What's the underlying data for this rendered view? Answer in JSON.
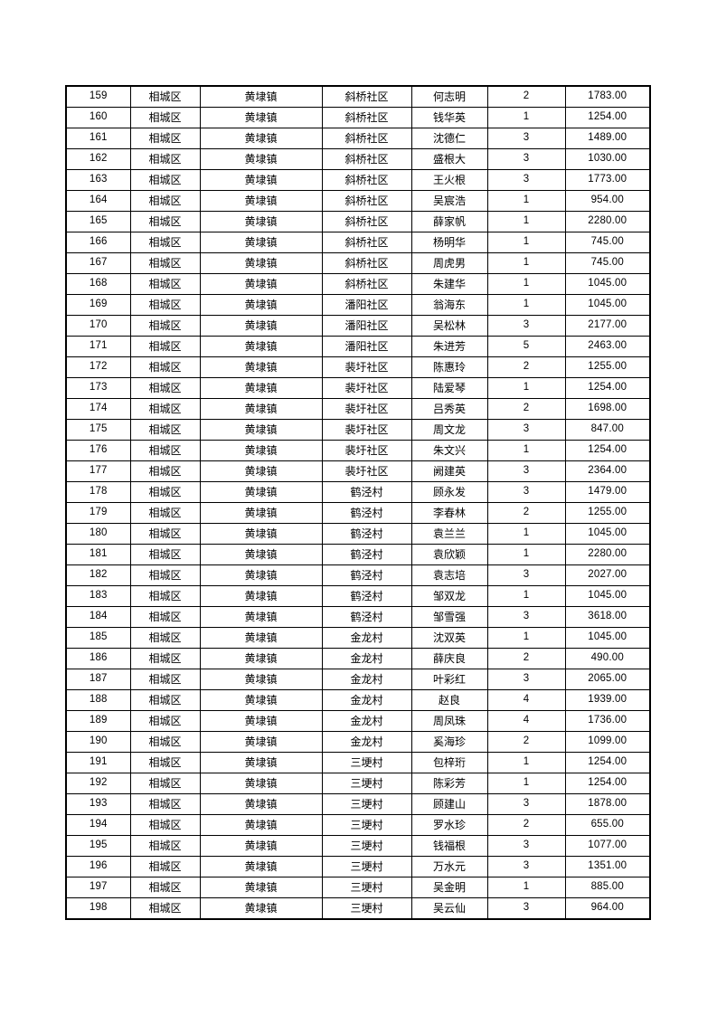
{
  "page": {
    "background": "#ffffff",
    "border_color": "#000000",
    "text_color": "#000000"
  },
  "table": {
    "rows": [
      [
        "159",
        "相城区",
        "黄埭镇",
        "斜桥社区",
        "何志明",
        "2",
        "1783.00"
      ],
      [
        "160",
        "相城区",
        "黄埭镇",
        "斜桥社区",
        "钱华英",
        "1",
        "1254.00"
      ],
      [
        "161",
        "相城区",
        "黄埭镇",
        "斜桥社区",
        "沈德仁",
        "3",
        "1489.00"
      ],
      [
        "162",
        "相城区",
        "黄埭镇",
        "斜桥社区",
        "盛根大",
        "3",
        "1030.00"
      ],
      [
        "163",
        "相城区",
        "黄埭镇",
        "斜桥社区",
        "王火根",
        "3",
        "1773.00"
      ],
      [
        "164",
        "相城区",
        "黄埭镇",
        "斜桥社区",
        "吴宸浩",
        "1",
        "954.00"
      ],
      [
        "165",
        "相城区",
        "黄埭镇",
        "斜桥社区",
        "薛家帆",
        "1",
        "2280.00"
      ],
      [
        "166",
        "相城区",
        "黄埭镇",
        "斜桥社区",
        "杨明华",
        "1",
        "745.00"
      ],
      [
        "167",
        "相城区",
        "黄埭镇",
        "斜桥社区",
        "周虎男",
        "1",
        "745.00"
      ],
      [
        "168",
        "相城区",
        "黄埭镇",
        "斜桥社区",
        "朱建华",
        "1",
        "1045.00"
      ],
      [
        "169",
        "相城区",
        "黄埭镇",
        "潘阳社区",
        "翁海东",
        "1",
        "1045.00"
      ],
      [
        "170",
        "相城区",
        "黄埭镇",
        "潘阳社区",
        "吴松林",
        "3",
        "2177.00"
      ],
      [
        "171",
        "相城区",
        "黄埭镇",
        "潘阳社区",
        "朱进芳",
        "5",
        "2463.00"
      ],
      [
        "172",
        "相城区",
        "黄埭镇",
        "裴圩社区",
        "陈惠玲",
        "2",
        "1255.00"
      ],
      [
        "173",
        "相城区",
        "黄埭镇",
        "裴圩社区",
        "陆爱琴",
        "1",
        "1254.00"
      ],
      [
        "174",
        "相城区",
        "黄埭镇",
        "裴圩社区",
        "吕秀英",
        "2",
        "1698.00"
      ],
      [
        "175",
        "相城区",
        "黄埭镇",
        "裴圩社区",
        "周文龙",
        "3",
        "847.00"
      ],
      [
        "176",
        "相城区",
        "黄埭镇",
        "裴圩社区",
        "朱文兴",
        "1",
        "1254.00"
      ],
      [
        "177",
        "相城区",
        "黄埭镇",
        "裴圩社区",
        "阙建英",
        "3",
        "2364.00"
      ],
      [
        "178",
        "相城区",
        "黄埭镇",
        "鹤泾村",
        "顾永发",
        "3",
        "1479.00"
      ],
      [
        "179",
        "相城区",
        "黄埭镇",
        "鹤泾村",
        "李春林",
        "2",
        "1255.00"
      ],
      [
        "180",
        "相城区",
        "黄埭镇",
        "鹤泾村",
        "袁兰兰",
        "1",
        "1045.00"
      ],
      [
        "181",
        "相城区",
        "黄埭镇",
        "鹤泾村",
        "袁欣颖",
        "1",
        "2280.00"
      ],
      [
        "182",
        "相城区",
        "黄埭镇",
        "鹤泾村",
        "袁志培",
        "3",
        "2027.00"
      ],
      [
        "183",
        "相城区",
        "黄埭镇",
        "鹤泾村",
        "邹双龙",
        "1",
        "1045.00"
      ],
      [
        "184",
        "相城区",
        "黄埭镇",
        "鹤泾村",
        "邹雪强",
        "3",
        "3618.00"
      ],
      [
        "185",
        "相城区",
        "黄埭镇",
        "金龙村",
        "沈双英",
        "1",
        "1045.00"
      ],
      [
        "186",
        "相城区",
        "黄埭镇",
        "金龙村",
        "薛庆良",
        "2",
        "490.00"
      ],
      [
        "187",
        "相城区",
        "黄埭镇",
        "金龙村",
        "叶彩红",
        "3",
        "2065.00"
      ],
      [
        "188",
        "相城区",
        "黄埭镇",
        "金龙村",
        "赵良",
        "4",
        "1939.00"
      ],
      [
        "189",
        "相城区",
        "黄埭镇",
        "金龙村",
        "周凤珠",
        "4",
        "1736.00"
      ],
      [
        "190",
        "相城区",
        "黄埭镇",
        "金龙村",
        "奚海珍",
        "2",
        "1099.00"
      ],
      [
        "191",
        "相城区",
        "黄埭镇",
        "三埂村",
        "包梓珩",
        "1",
        "1254.00"
      ],
      [
        "192",
        "相城区",
        "黄埭镇",
        "三埂村",
        "陈彩芳",
        "1",
        "1254.00"
      ],
      [
        "193",
        "相城区",
        "黄埭镇",
        "三埂村",
        "顾建山",
        "3",
        "1878.00"
      ],
      [
        "194",
        "相城区",
        "黄埭镇",
        "三埂村",
        "罗水珍",
        "2",
        "655.00"
      ],
      [
        "195",
        "相城区",
        "黄埭镇",
        "三埂村",
        "钱福根",
        "3",
        "1077.00"
      ],
      [
        "196",
        "相城区",
        "黄埭镇",
        "三埂村",
        "万水元",
        "3",
        "1351.00"
      ],
      [
        "197",
        "相城区",
        "黄埭镇",
        "三埂村",
        "吴金明",
        "1",
        "885.00"
      ],
      [
        "198",
        "相城区",
        "黄埭镇",
        "三埂村",
        "吴云仙",
        "3",
        "964.00"
      ]
    ]
  }
}
